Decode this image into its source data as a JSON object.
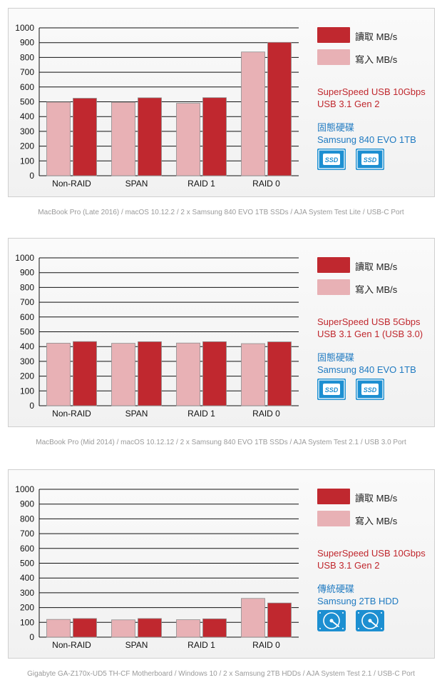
{
  "colors": {
    "read": "#c0282f",
    "write": "#e8b1b5",
    "read_label": "#c0272d",
    "drive_blue": "#1f7ac1",
    "icon_blue": "#1d8fd1"
  },
  "legend": {
    "read": "讀取 MB/s",
    "write": "寫入 MB/s"
  },
  "panels": [
    {
      "connection": [
        "SuperSpeed USB 10Gbps",
        "USB 3.1 Gen 2"
      ],
      "drive_type": "固態硬碟",
      "drive_model": "Samsung 840 EVO 1TB SSD",
      "icon": "ssd-icon",
      "caption": "MacBook Pro (Late 2016) / macOS 10.12.2 / 2 x Samsung 840 EVO 1TB SSDs / AJA System Test Lite / USB-C Port"
    },
    {
      "connection": [
        "SuperSpeed USB 5Gbps",
        "USB 3.1 Gen 1 (USB 3.0)"
      ],
      "drive_type": "固態硬碟",
      "drive_model": "Samsung 840 EVO 1TB SSD",
      "icon": "ssd-icon",
      "caption": "MacBook Pro (Mid 2014) / macOS 10.12.12 / 2 x Samsung 840 EVO 1TB SSDs / AJA System Test 2.1 / USB 3.0 Port"
    },
    {
      "connection": [
        "SuperSpeed USB 10Gbps",
        "USB 3.1 Gen 2"
      ],
      "drive_type": "傳統硬碟",
      "drive_model": "Samsung 2TB HDD",
      "icon": "hdd-icon",
      "caption": "Gigabyte GA-Z170x-UD5 TH-CF Motherboard / Windows 10 / 2 x Samsung 2TB HDDs / AJA System Test 2.1 / USB-C Port"
    }
  ],
  "chart_data": [
    {
      "type": "bar",
      "categories": [
        "Non-RAID",
        "SPAN",
        "RAID 1",
        "RAID 0"
      ],
      "series": [
        {
          "name": "寫入 MB/s",
          "values": [
            498,
            497,
            490,
            837
          ]
        },
        {
          "name": "讀取 MB/s",
          "values": [
            524,
            527,
            528,
            902
          ]
        }
      ],
      "ylim": [
        0,
        1000
      ],
      "yticks": [
        0,
        100,
        200,
        300,
        400,
        500,
        600,
        700,
        800,
        900,
        1000
      ],
      "grid": true,
      "legend_position": "right"
    },
    {
      "type": "bar",
      "categories": [
        "Non-RAID",
        "SPAN",
        "RAID 1",
        "RAID 0"
      ],
      "series": [
        {
          "name": "寫入 MB/s",
          "values": [
            423,
            422,
            424,
            420
          ]
        },
        {
          "name": "讀取 MB/s",
          "values": [
            434,
            433,
            433,
            432
          ]
        }
      ],
      "ylim": [
        0,
        1000
      ],
      "yticks": [
        0,
        100,
        200,
        300,
        400,
        500,
        600,
        700,
        800,
        900,
        1000
      ],
      "grid": true,
      "legend_position": "right"
    },
    {
      "type": "bar",
      "categories": [
        "Non-RAID",
        "SPAN",
        "RAID 1",
        "RAID 0"
      ],
      "series": [
        {
          "name": "寫入 MB/s",
          "values": [
            120,
            117,
            118,
            262
          ]
        },
        {
          "name": "讀取 MB/s",
          "values": [
            126,
            126,
            124,
            231
          ]
        }
      ],
      "ylim": [
        0,
        1000
      ],
      "yticks": [
        0,
        100,
        200,
        300,
        400,
        500,
        600,
        700,
        800,
        900,
        1000
      ],
      "grid": true,
      "legend_position": "right"
    }
  ]
}
